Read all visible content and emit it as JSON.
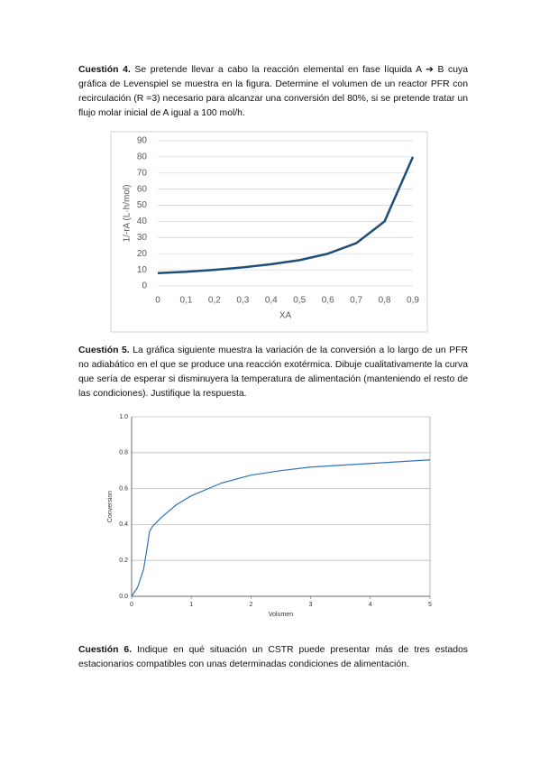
{
  "questions": [
    {
      "label": "Cuestión 4.",
      "text": "Se pretende llevar a cabo la reacción elemental en fase líquida A ➔ B cuya gráfica de Levenspiel se muestra en la figura. Determine el volumen de un reactor PFR con recirculación (R =3) necesario para alcanzar una conversión del 80%, si se pretende tratar un flujo molar inicial de A igual a 100 mol/h."
    },
    {
      "label": "Cuestión 5.",
      "text": "La gráfica siguiente muestra la variación de la conversión a lo largo de un PFR no adiabático en el que se produce una reacción exotérmica. Dibuje cualitativamente la curva que sería de esperar si disminuyera la temperatura de alimentación (manteniendo el resto de las condiciones). Justifique la respuesta."
    },
    {
      "label": "Cuestión 6.",
      "text": "Indique en qué situación un CSTR puede presentar más de tres estados estacionarios compatibles con unas determinadas condiciones de alimentación."
    }
  ],
  "chart_data": [
    {
      "type": "line",
      "x_label": "XA",
      "y_label": "1/-rA (L·h/mol)",
      "x": [
        0,
        0.1,
        0.2,
        0.3,
        0.4,
        0.5,
        0.6,
        0.7,
        0.8,
        0.9
      ],
      "values": [
        8,
        8.8,
        10,
        11.5,
        13.5,
        16,
        20,
        26.5,
        40,
        80
      ],
      "color": "#1f4e79",
      "xlim": [
        0,
        0.9
      ],
      "ylim": [
        0,
        90
      ],
      "xticks": [
        0,
        {
          "value": 0.1,
          "label": "0,1"
        },
        {
          "value": 0.2,
          "label": "0,2"
        },
        {
          "value": 0.3,
          "label": "0,3"
        },
        {
          "value": 0.4,
          "label": "0,4"
        },
        {
          "value": 0.5,
          "label": "0,5"
        },
        {
          "value": 0.6,
          "label": "0,6"
        },
        {
          "value": 0.7,
          "label": "0,7"
        },
        {
          "value": 0.8,
          "label": "0,8"
        },
        {
          "value": 0.9,
          "label": "0,9"
        }
      ],
      "yticks": [
        0,
        10,
        20,
        30,
        40,
        50,
        60,
        70,
        80,
        90
      ],
      "grid": true
    },
    {
      "type": "line",
      "x_label": "Volumen",
      "y_label": "Conversion",
      "x": [
        0,
        0.1,
        0.2,
        0.25,
        0.3,
        0.35,
        0.5,
        0.75,
        1,
        1.5,
        2,
        2.5,
        3,
        3.5,
        4,
        4.5,
        5
      ],
      "values": [
        0,
        0.05,
        0.15,
        0.25,
        0.36,
        0.39,
        0.44,
        0.51,
        0.56,
        0.63,
        0.675,
        0.7,
        0.72,
        0.73,
        0.74,
        0.75,
        0.76
      ],
      "color": "#2e75b6",
      "xlim": [
        0,
        5
      ],
      "ylim": [
        0,
        1
      ],
      "xticks": [
        0,
        1,
        2,
        3,
        4,
        5
      ],
      "yticks": [
        {
          "value": 0,
          "label": "0.0"
        },
        0.2,
        0.4,
        0.6,
        0.8,
        {
          "value": 1,
          "label": "1.0"
        }
      ],
      "grid": true
    }
  ]
}
